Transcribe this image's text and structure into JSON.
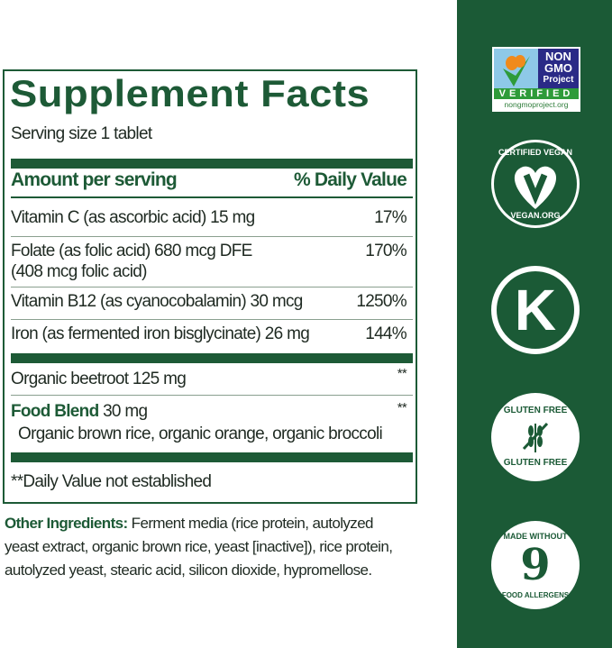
{
  "facts": {
    "title": "Supplement Facts",
    "serving_size": "Serving size 1 tablet",
    "header_amount": "Amount per serving",
    "header_dv": "% Daily Value",
    "nutrients": [
      {
        "name": "Vitamin C (as ascorbic acid) 15 mg",
        "dv": "17%"
      },
      {
        "name": "Folate (as folic acid) 680 mcg DFE",
        "name2": "(408 mcg folic acid)",
        "dv": "170%"
      },
      {
        "name": "Vitamin B12 (as cyanocobalamin) 30 mcg",
        "dv": "1250%"
      },
      {
        "name": "Iron (as fermented iron bisglycinate) 26 mg",
        "dv": "144%"
      }
    ],
    "others": [
      {
        "name": "Organic beetroot 125 mg",
        "dv": "**"
      },
      {
        "bold": "Food Blend",
        "amount": " 30 mg",
        "sub": "Organic brown rice, organic orange, organic broccoli",
        "dv": "**"
      }
    ],
    "footnote": "**Daily Value not established"
  },
  "other_ingredients": {
    "label": "Other Ingredients:",
    "text": " Ferment media (rice protein, autolyzed yeast extract, organic brown rice, yeast [inactive]), rice protein, autolyzed yeast, stearic acid, silicon dioxide, hypromellose."
  },
  "badges": {
    "nongmo": {
      "line1": "NON",
      "line2": "GMO",
      "line3": "Project",
      "verified": "VERIFIED",
      "url": "nongmoproject.org"
    },
    "vegan": {
      "top": "CERTIFIED VEGAN",
      "bottom": "VEGAN.ORG"
    },
    "kosher": {
      "letter": "K"
    },
    "gluten": {
      "top": "GLUTEN FREE",
      "bottom": "GLUTEN FREE"
    },
    "allergen": {
      "top": "MADE WITHOUT",
      "number": "9",
      "bottom": "FOOD ALLERGENS"
    }
  },
  "colors": {
    "brand_green": "#1d5a36",
    "sidebar": "#1b5a36"
  }
}
